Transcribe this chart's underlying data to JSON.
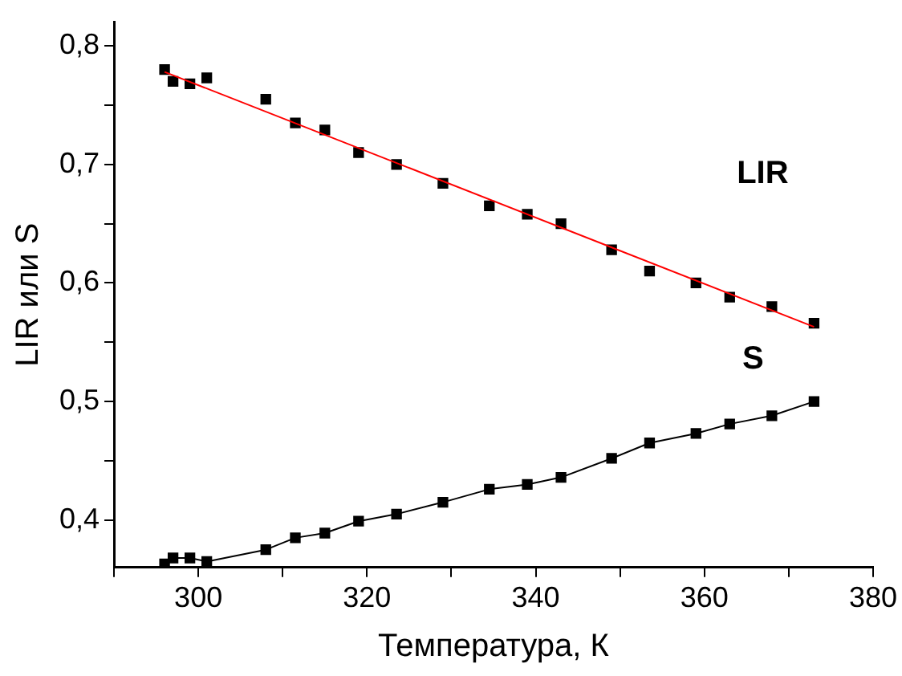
{
  "chart_data": {
    "type": "scatter",
    "xlabel": "Температура, К",
    "ylabel": "LIR или S",
    "xlim": [
      290,
      380
    ],
    "xticks": [
      {
        "value": 290,
        "label": null
      },
      300,
      {
        "value": 310,
        "label": null
      },
      320,
      {
        "value": 330,
        "label": null
      },
      340,
      {
        "value": 350,
        "label": null
      },
      360,
      {
        "value": 370,
        "label": null
      },
      380
    ],
    "ylim": [
      0.36,
      0.82
    ],
    "yticks": [
      {
        "value": 0.4,
        "label": "0,4"
      },
      {
        "value": 0.45,
        "label": null
      },
      {
        "value": 0.5,
        "label": "0,5"
      },
      {
        "value": 0.55,
        "label": null
      },
      {
        "value": 0.6,
        "label": "0,6"
      },
      {
        "value": 0.65,
        "label": null
      },
      {
        "value": 0.7,
        "label": "0,7"
      },
      {
        "value": 0.75,
        "label": null
      },
      {
        "value": 0.8,
        "label": "0,8"
      }
    ],
    "grid": false,
    "legend": false,
    "marker": "square",
    "series": [
      {
        "name": "LIR",
        "color": "#000000",
        "x": [
          296,
          297,
          299,
          301,
          308,
          311.5,
          315,
          319,
          323.5,
          329,
          334.5,
          339,
          343,
          349,
          353.5,
          359,
          363,
          368,
          373
        ],
        "values": [
          0.78,
          0.77,
          0.768,
          0.773,
          0.755,
          0.735,
          0.729,
          0.71,
          0.7,
          0.684,
          0.665,
          0.658,
          0.65,
          0.628,
          0.61,
          0.6,
          0.588,
          0.58,
          0.566
        ]
      },
      {
        "type": "line",
        "color": "#ff0000",
        "marker": "none",
        "x": [
          296,
          373
        ],
        "values": [
          0.778,
          0.563
        ]
      },
      {
        "name": "S",
        "type": "line",
        "color": "#000000",
        "x": [
          296,
          297,
          299,
          301,
          308,
          311.5,
          315,
          319,
          323.5,
          329,
          334.5,
          339,
          343,
          349,
          353.5,
          359,
          363,
          368,
          373
        ],
        "values": [
          0.363,
          0.368,
          0.368,
          0.365,
          0.375,
          0.385,
          0.389,
          0.399,
          0.405,
          0.415,
          0.426,
          0.43,
          0.436,
          0.452,
          0.465,
          0.473,
          0.481,
          0.488,
          0.5
        ]
      }
    ]
  }
}
